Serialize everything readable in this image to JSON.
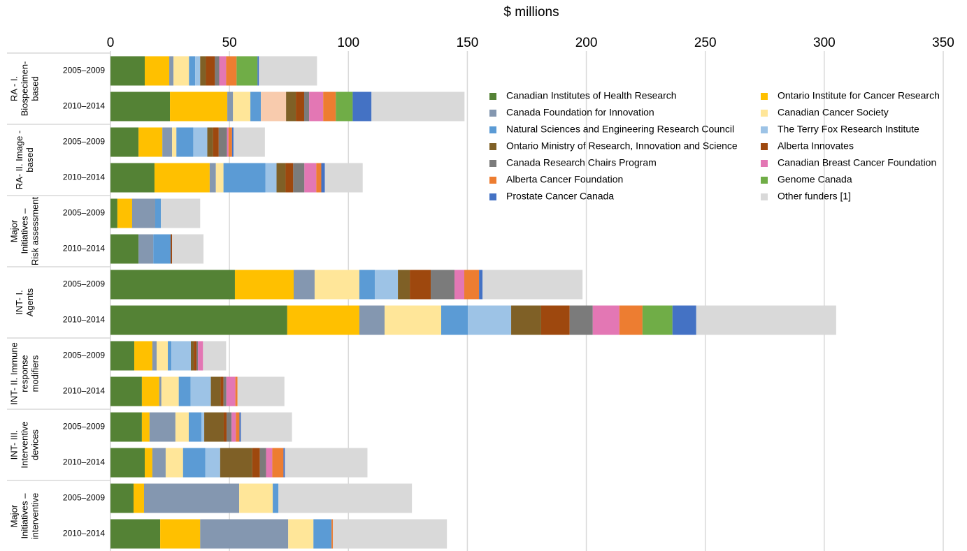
{
  "chart_data": {
    "type": "stacked-bar-horizontal",
    "x_label": "$ millions",
    "xlim": [
      0,
      350
    ],
    "xticks": [
      0,
      50,
      100,
      150,
      200,
      250,
      300,
      350
    ],
    "grid": true,
    "groups": [
      [
        "RA - I.",
        "Biospecimen-",
        "based"
      ],
      [
        "RA- II. Image -",
        "based"
      ],
      [
        "Major",
        "Initiatives –",
        "Risk assessment"
      ],
      [
        "INT- I.",
        "Agents"
      ],
      [
        "INT- II. Immune",
        "response",
        "modifiers"
      ],
      [
        "INT- III.",
        "Interventive",
        "devices"
      ],
      [
        "Major",
        "Initiatives –",
        "interventive"
      ]
    ],
    "categories": [
      "2005–2009",
      "2010–2014",
      "2005–2009",
      "2010–2014",
      "2005–2009",
      "2010–2014",
      "2005–2009",
      "2010–2014",
      "2005–2009",
      "2010–2014",
      "2005–2009",
      "2010–2014",
      "2005–2009",
      "2010–2014"
    ],
    "legend": "top-right",
    "series": [
      {
        "name": "Canadian Institutes of Health Research",
        "color": "#548235",
        "values": [
          14.4,
          25,
          11.8,
          18.5,
          2.9,
          11.8,
          52.3,
          74.3,
          10.0,
          13.2,
          13.2,
          14.4,
          9.7,
          20.9
        ]
      },
      {
        "name": "Ontario Institute for Cancer Research",
        "color": "#ffc000",
        "values": [
          10.3,
          24.1,
          10,
          23.2,
          6.2,
          0,
          24.7,
          30.3,
          7.6,
          7.3,
          3.2,
          3.2,
          4.4,
          16.8
        ]
      },
      {
        "name": "Canada Foundation for Innovation",
        "color": "#8497b0",
        "values": [
          1.8,
          2.4,
          4.1,
          2.6,
          9.7,
          6.2,
          8.8,
          10.6,
          1.8,
          0.9,
          10.9,
          5.6,
          40.0,
          37.0
        ]
      },
      {
        "name": "Canadian Cancer Society",
        "color": "#ffe699",
        "values": [
          6.5,
          7.3,
          1.8,
          3.2,
          0,
          0,
          18.8,
          23.8,
          4.7,
          7.3,
          5.6,
          7.3,
          14.1,
          10.6
        ]
      },
      {
        "name": "Natural Sciences and Engineering Research Council",
        "color": "#5b9bd5",
        "values": [
          2.6,
          4.4,
          7.1,
          17.6,
          2.4,
          7.3,
          6.5,
          11.2,
          1.5,
          5.0,
          5.3,
          9.4,
          2.4,
          7.6
        ]
      },
      {
        "name": "The Terry Fox Research Institute",
        "color": "#9dc3e6",
        "values": [
          2.1,
          0,
          5.9,
          4.7,
          0,
          0,
          9.7,
          18.2,
          8.2,
          8.5,
          1.2,
          6.2,
          0,
          0
        ]
      },
      {
        "name": null,
        "color": "#f8cbad",
        "values": [
          0,
          10.6,
          0,
          0,
          0,
          0,
          0,
          0,
          0,
          0,
          0,
          0,
          0,
          0
        ]
      },
      {
        "name": "Ontario Ministry of Research, Innovation and Science",
        "color": "#7f6026",
        "values": [
          2.4,
          4.1,
          2.4,
          3.8,
          0,
          0,
          5.0,
          12.6,
          1.2,
          4.1,
          8.2,
          13.5,
          0,
          0
        ]
      },
      {
        "name": "Alberta Innovates",
        "color": "#9e480e",
        "values": [
          3.8,
          3.5,
          2.4,
          3.2,
          0,
          0.6,
          8.8,
          12.0,
          1.2,
          1.2,
          1.2,
          3.2,
          0,
          0
        ]
      },
      {
        "name": "Canada Research Chairs Program",
        "color": "#7b7b7b",
        "values": [
          1.8,
          2.1,
          3.5,
          4.7,
          0,
          0,
          10.0,
          9.7,
          0.6,
          1.2,
          2.1,
          2.6,
          0,
          0
        ]
      },
      {
        "name": "Canadian Breast Cancer Foundation",
        "color": "#e377b4",
        "values": [
          2.9,
          5.9,
          0.6,
          5.0,
          0,
          0,
          4.1,
          11.2,
          2.1,
          3.8,
          1.8,
          2.6,
          0,
          0
        ]
      },
      {
        "name": "Alberta Cancer Foundation",
        "color": "#ed7d31",
        "values": [
          4.4,
          5.3,
          1.5,
          2.1,
          0,
          0,
          6.2,
          9.7,
          0,
          0.9,
          1.5,
          4.7,
          0,
          0.6
        ]
      },
      {
        "name": "Genome Canada",
        "color": "#70ad47",
        "values": [
          8.8,
          7.1,
          0,
          0,
          0,
          0,
          0,
          12.6,
          0,
          0,
          0,
          0,
          0,
          0
        ]
      },
      {
        "name": "Prostate Cancer Canada",
        "color": "#4472c4",
        "values": [
          0.6,
          7.9,
          0.6,
          1.5,
          0,
          0,
          1.5,
          10.0,
          0,
          0,
          0.6,
          0.6,
          0,
          0
        ]
      },
      {
        "name": "Other funders [1]",
        "color": "#d9d9d9",
        "values": [
          24.4,
          39.1,
          13.2,
          15.9,
          16.5,
          13.2,
          42.0,
          58.8,
          9.7,
          19.7,
          21.5,
          34.7,
          56.1,
          47.9
        ]
      }
    ]
  }
}
